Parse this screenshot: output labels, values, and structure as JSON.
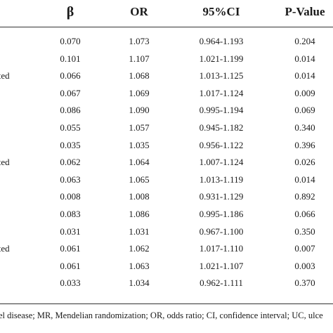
{
  "table": {
    "headers": {
      "beta": "β",
      "or": "OR",
      "ci": "95%CI",
      "p": "P-Value"
    },
    "rows": [
      {
        "label": "",
        "beta": "0.070",
        "or": "1.073",
        "ci": "0.964-1.193",
        "p": "0.204"
      },
      {
        "label": "",
        "beta": "0.101",
        "or": "1.107",
        "ci": "1.021-1.199",
        "p": "0.014"
      },
      {
        "label": "ated",
        "beta": "0.066",
        "or": "1.068",
        "ci": "1.013-1.125",
        "p": "0.014"
      },
      {
        "label": "",
        "beta": "0.067",
        "or": "1.069",
        "ci": "1.017-1.124",
        "p": "0.009"
      },
      {
        "label": "",
        "beta": "0.086",
        "or": "1.090",
        "ci": "0.995-1.194",
        "p": "0.069"
      },
      {
        "label": "",
        "beta": "0.055",
        "or": "1.057",
        "ci": "0.945-1.182",
        "p": "0.340"
      },
      {
        "label": "",
        "beta": "0.035",
        "or": "1.035",
        "ci": "0.956-1.122",
        "p": "0.396"
      },
      {
        "label": "ated",
        "beta": "0.062",
        "or": "1.064",
        "ci": "1.007-1.124",
        "p": "0.026"
      },
      {
        "label": "",
        "beta": "0.063",
        "or": "1.065",
        "ci": "1.013-1.119",
        "p": "0.014"
      },
      {
        "label": "",
        "beta": "0.008",
        "or": "1.008",
        "ci": "0.931-1.129",
        "p": "0.892"
      },
      {
        "label": "",
        "beta": "0.083",
        "or": "1.086",
        "ci": "0.995-1.186",
        "p": "0.066"
      },
      {
        "label": "",
        "beta": "0.031",
        "or": "1.031",
        "ci": "0.967-1.100",
        "p": "0.350"
      },
      {
        "label": "ated",
        "beta": "0.061",
        "or": "1.062",
        "ci": "1.017-1.110",
        "p": "0.007"
      },
      {
        "label": "",
        "beta": "0.061",
        "or": "1.063",
        "ci": "1.021-1.107",
        "p": "0.003"
      },
      {
        "label": "",
        "beta": "0.033",
        "or": "1.034",
        "ci": "0.962-1.111",
        "p": "0.370"
      }
    ]
  },
  "footnote": "el disease; MR, Mendelian randomization; OR, odds ratio; CI, confidence interval; UC, ulce"
}
